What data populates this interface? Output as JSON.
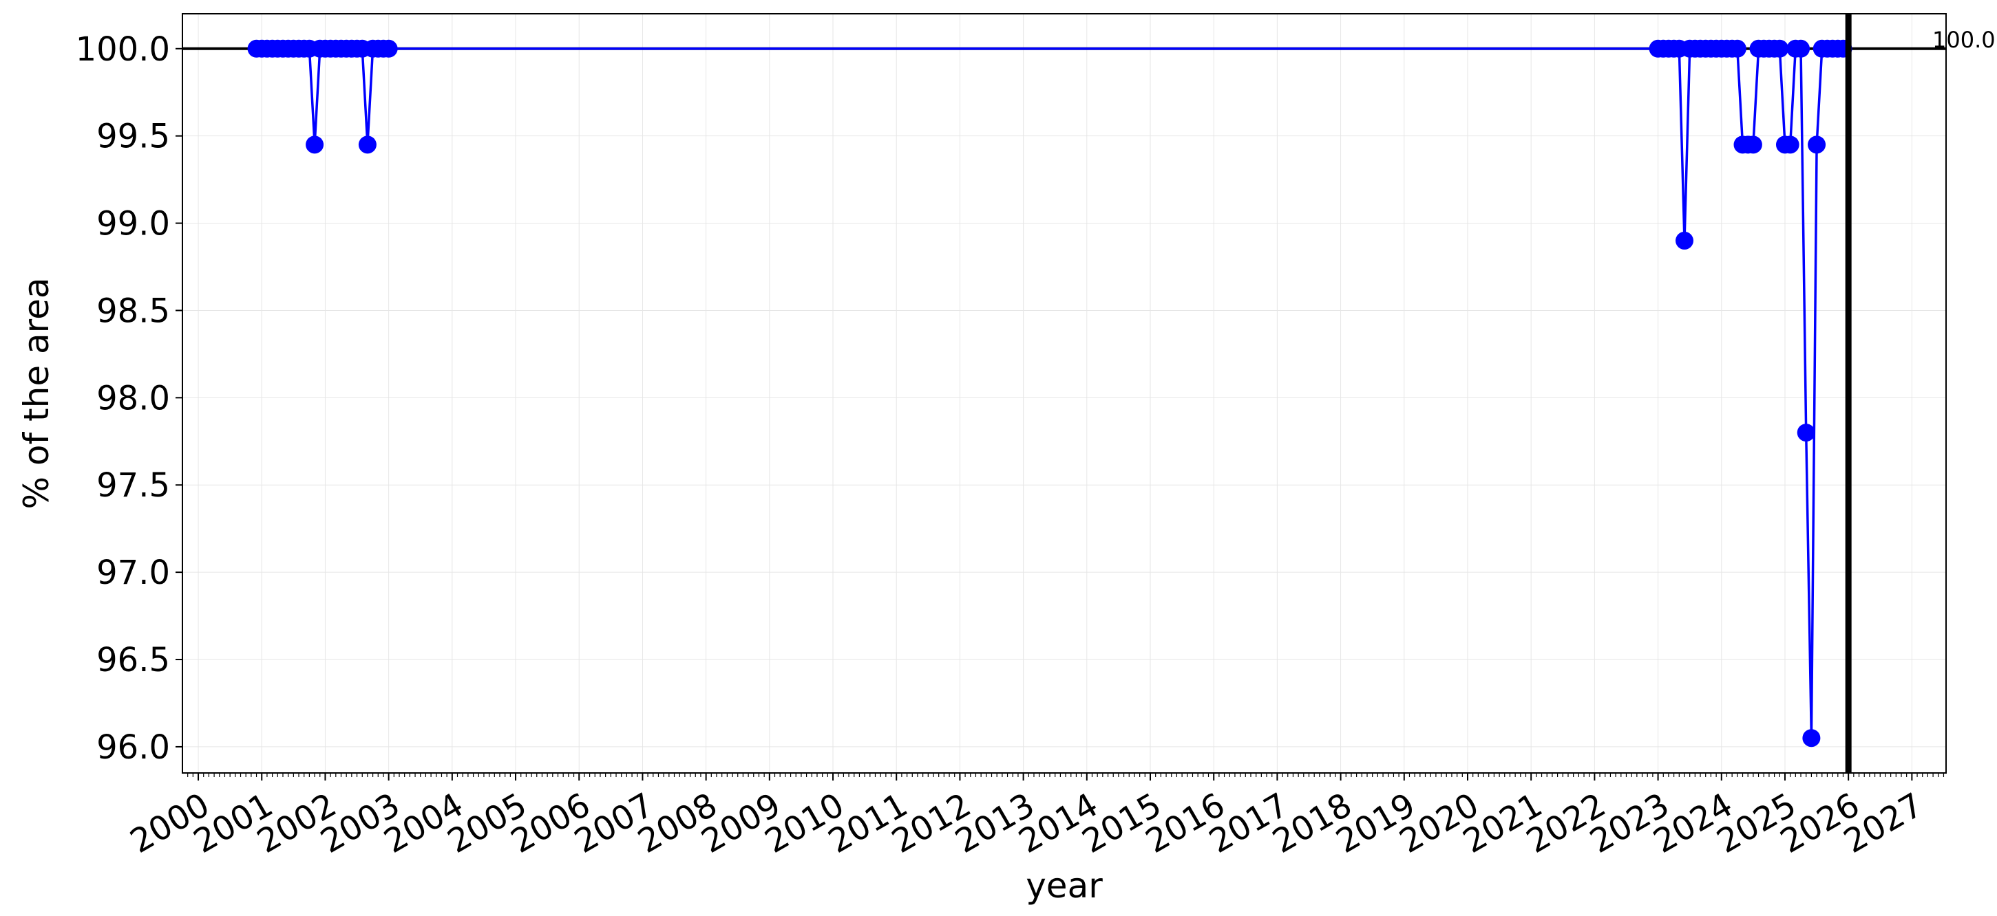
{
  "chart_data": {
    "type": "line",
    "xlabel": "year",
    "ylabel": "% of the area",
    "ylim": [
      95.85,
      100.2
    ],
    "xlim": [
      "1999-10-01",
      "2027-07-15"
    ],
    "yticks": [
      "96.0",
      "96.5",
      "97.0",
      "97.5",
      "98.0",
      "98.5",
      "99.0",
      "99.5",
      "100.0"
    ],
    "xticks": [
      "2000",
      "2001",
      "2002",
      "2003",
      "2004",
      "2005",
      "2006",
      "2007",
      "2008",
      "2009",
      "2010",
      "2011",
      "2012",
      "2013",
      "2014",
      "2015",
      "2016",
      "2017",
      "2018",
      "2019",
      "2020",
      "2021",
      "2022",
      "2023",
      "2024",
      "2025",
      "2026",
      "2027"
    ],
    "grid": true,
    "series": [
      {
        "color": "#0000ff",
        "marker": "circle",
        "x": [
          "2000-12-01",
          "2001-01-01",
          "2001-02-01",
          "2001-03-01",
          "2001-04-01",
          "2001-05-01",
          "2001-06-01",
          "2001-07-01",
          "2001-08-01",
          "2001-09-01",
          "2001-10-01",
          "2001-11-01",
          "2001-12-01",
          "2002-01-01",
          "2002-02-01",
          "2002-03-01",
          "2002-04-01",
          "2002-05-01",
          "2002-06-01",
          "2002-07-01",
          "2002-08-01",
          "2002-09-01",
          "2002-10-01",
          "2002-11-01",
          "2002-12-01",
          "2003-01-01",
          "2023-01-01",
          "2023-02-01",
          "2023-03-01",
          "2023-04-01",
          "2023-05-01",
          "2023-06-01",
          "2023-07-01",
          "2023-08-01",
          "2023-09-01",
          "2023-10-01",
          "2023-11-01",
          "2023-12-01",
          "2024-01-01",
          "2024-02-01",
          "2024-03-01",
          "2024-04-01",
          "2024-05-01",
          "2024-06-01",
          "2024-07-01",
          "2024-08-01",
          "2024-09-01",
          "2024-10-01",
          "2024-11-01",
          "2024-12-01",
          "2025-01-01",
          "2025-02-01",
          "2025-03-01",
          "2025-04-01",
          "2025-05-01",
          "2025-06-01",
          "2025-07-01",
          "2025-08-01",
          "2025-09-01",
          "2025-10-01",
          "2025-11-01",
          "2025-12-01"
        ],
        "values": [
          100.0,
          100.0,
          100.0,
          100.0,
          100.0,
          100.0,
          100.0,
          100.0,
          100.0,
          100.0,
          100.0,
          99.45,
          100.0,
          100.0,
          100.0,
          100.0,
          100.0,
          100.0,
          100.0,
          100.0,
          100.0,
          99.45,
          100.0,
          100.0,
          100.0,
          100.0,
          100.0,
          100.0,
          100.0,
          100.0,
          100.0,
          98.9,
          100.0,
          100.0,
          100.0,
          100.0,
          100.0,
          100.0,
          100.0,
          100.0,
          100.0,
          100.0,
          99.45,
          99.45,
          99.45,
          100.0,
          100.0,
          100.0,
          100.0,
          100.0,
          99.45,
          99.45,
          100.0,
          100.0,
          97.8,
          96.05,
          99.45,
          100.0,
          100.0,
          100.0,
          100.0,
          100.0
        ]
      }
    ],
    "reference_line": {
      "y": 100.0,
      "label": "100.0"
    },
    "marker_line": {
      "x": "2026-01-01"
    }
  },
  "colors": {
    "series": "#0000ff",
    "reference": "#000000",
    "grid": "#e6e6e6",
    "axes": "#000000"
  }
}
